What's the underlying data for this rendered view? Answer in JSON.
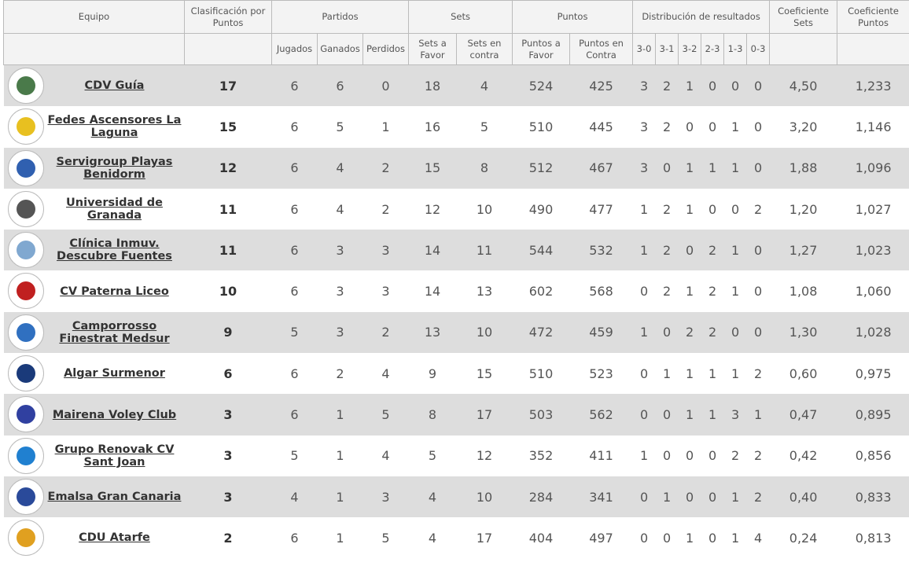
{
  "headers": {
    "equipo": "Equipo",
    "clasificacion": "Clasificación por Puntos",
    "partidos": "Partidos",
    "sets": "Sets",
    "puntos": "Puntos",
    "distribucion": "Distribución de resultados",
    "coef_sets": "Coeficiente Sets",
    "coef_puntos": "Coeficiente Puntos",
    "jugados": "Jugados",
    "ganados": "Ganados",
    "perdidos": "Perdidos",
    "sets_favor": "Sets a Favor",
    "sets_contra": "Sets en contra",
    "puntos_favor": "Puntos a Favor",
    "puntos_contra": "Puntos en Contra",
    "d30": "3-0",
    "d31": "3-1",
    "d32": "3-2",
    "d23": "2-3",
    "d13": "1-3",
    "d03": "0-3"
  },
  "rows": [
    {
      "team": "CDV Guía",
      "pts": "17",
      "j": "6",
      "g": "6",
      "p": "0",
      "sf": "18",
      "sc": "4",
      "pf": "524",
      "pc": "425",
      "d": [
        "3",
        "2",
        "1",
        "0",
        "0",
        "0"
      ],
      "cs": "4,50",
      "cp": "1,233",
      "logo_color": "#4a7a4a"
    },
    {
      "team": "Fedes Ascensores La Laguna",
      "pts": "15",
      "j": "6",
      "g": "5",
      "p": "1",
      "sf": "16",
      "sc": "5",
      "pf": "510",
      "pc": "445",
      "d": [
        "3",
        "2",
        "0",
        "0",
        "1",
        "0"
      ],
      "cs": "3,20",
      "cp": "1,146",
      "logo_color": "#e8c020"
    },
    {
      "team": "Servigroup Playas Benidorm",
      "pts": "12",
      "j": "6",
      "g": "4",
      "p": "2",
      "sf": "15",
      "sc": "8",
      "pf": "512",
      "pc": "467",
      "d": [
        "3",
        "0",
        "1",
        "1",
        "1",
        "0"
      ],
      "cs": "1,88",
      "cp": "1,096",
      "logo_color": "#3060b0"
    },
    {
      "team": "Universidad de Granada",
      "pts": "11",
      "j": "6",
      "g": "4",
      "p": "2",
      "sf": "12",
      "sc": "10",
      "pf": "490",
      "pc": "477",
      "d": [
        "1",
        "2",
        "1",
        "0",
        "0",
        "2"
      ],
      "cs": "1,20",
      "cp": "1,027",
      "logo_color": "#555555"
    },
    {
      "team": "Clínica Inmuv. Descubre Fuentes",
      "pts": "11",
      "j": "6",
      "g": "3",
      "p": "3",
      "sf": "14",
      "sc": "11",
      "pf": "544",
      "pc": "532",
      "d": [
        "1",
        "2",
        "0",
        "2",
        "1",
        "0"
      ],
      "cs": "1,27",
      "cp": "1,023",
      "logo_color": "#80a8d0"
    },
    {
      "team": "CV Paterna Liceo",
      "pts": "10",
      "j": "6",
      "g": "3",
      "p": "3",
      "sf": "14",
      "sc": "13",
      "pf": "602",
      "pc": "568",
      "d": [
        "0",
        "2",
        "1",
        "2",
        "1",
        "0"
      ],
      "cs": "1,08",
      "cp": "1,060",
      "logo_color": "#c02020"
    },
    {
      "team": "Camporrosso Finestrat Medsur",
      "pts": "9",
      "j": "5",
      "g": "3",
      "p": "2",
      "sf": "13",
      "sc": "10",
      "pf": "472",
      "pc": "459",
      "d": [
        "1",
        "0",
        "2",
        "2",
        "0",
        "0"
      ],
      "cs": "1,30",
      "cp": "1,028",
      "logo_color": "#3070c0"
    },
    {
      "team": "Algar Surmenor",
      "pts": "6",
      "j": "6",
      "g": "2",
      "p": "4",
      "sf": "9",
      "sc": "15",
      "pf": "510",
      "pc": "523",
      "d": [
        "0",
        "1",
        "1",
        "1",
        "1",
        "2"
      ],
      "cs": "0,60",
      "cp": "0,975",
      "logo_color": "#1a3a7a"
    },
    {
      "team": "Mairena Voley Club",
      "pts": "3",
      "j": "6",
      "g": "1",
      "p": "5",
      "sf": "8",
      "sc": "17",
      "pf": "503",
      "pc": "562",
      "d": [
        "0",
        "0",
        "1",
        "1",
        "3",
        "1"
      ],
      "cs": "0,47",
      "cp": "0,895",
      "logo_color": "#3040a0"
    },
    {
      "team": "Grupo Renovak CV Sant Joan",
      "pts": "3",
      "j": "5",
      "g": "1",
      "p": "4",
      "sf": "5",
      "sc": "12",
      "pf": "352",
      "pc": "411",
      "d": [
        "1",
        "0",
        "0",
        "0",
        "2",
        "2"
      ],
      "cs": "0,42",
      "cp": "0,856",
      "logo_color": "#2080d0"
    },
    {
      "team": "Emalsa Gran Canaria",
      "pts": "3",
      "j": "4",
      "g": "1",
      "p": "3",
      "sf": "4",
      "sc": "10",
      "pf": "284",
      "pc": "341",
      "d": [
        "0",
        "1",
        "0",
        "0",
        "1",
        "2"
      ],
      "cs": "0,40",
      "cp": "0,833",
      "logo_color": "#2a4a9a"
    },
    {
      "team": "CDU Atarfe",
      "pts": "2",
      "j": "6",
      "g": "1",
      "p": "5",
      "sf": "4",
      "sc": "17",
      "pf": "404",
      "pc": "497",
      "d": [
        "0",
        "0",
        "1",
        "0",
        "1",
        "4"
      ],
      "cs": "0,24",
      "cp": "0,813",
      "logo_color": "#e0a020"
    }
  ]
}
